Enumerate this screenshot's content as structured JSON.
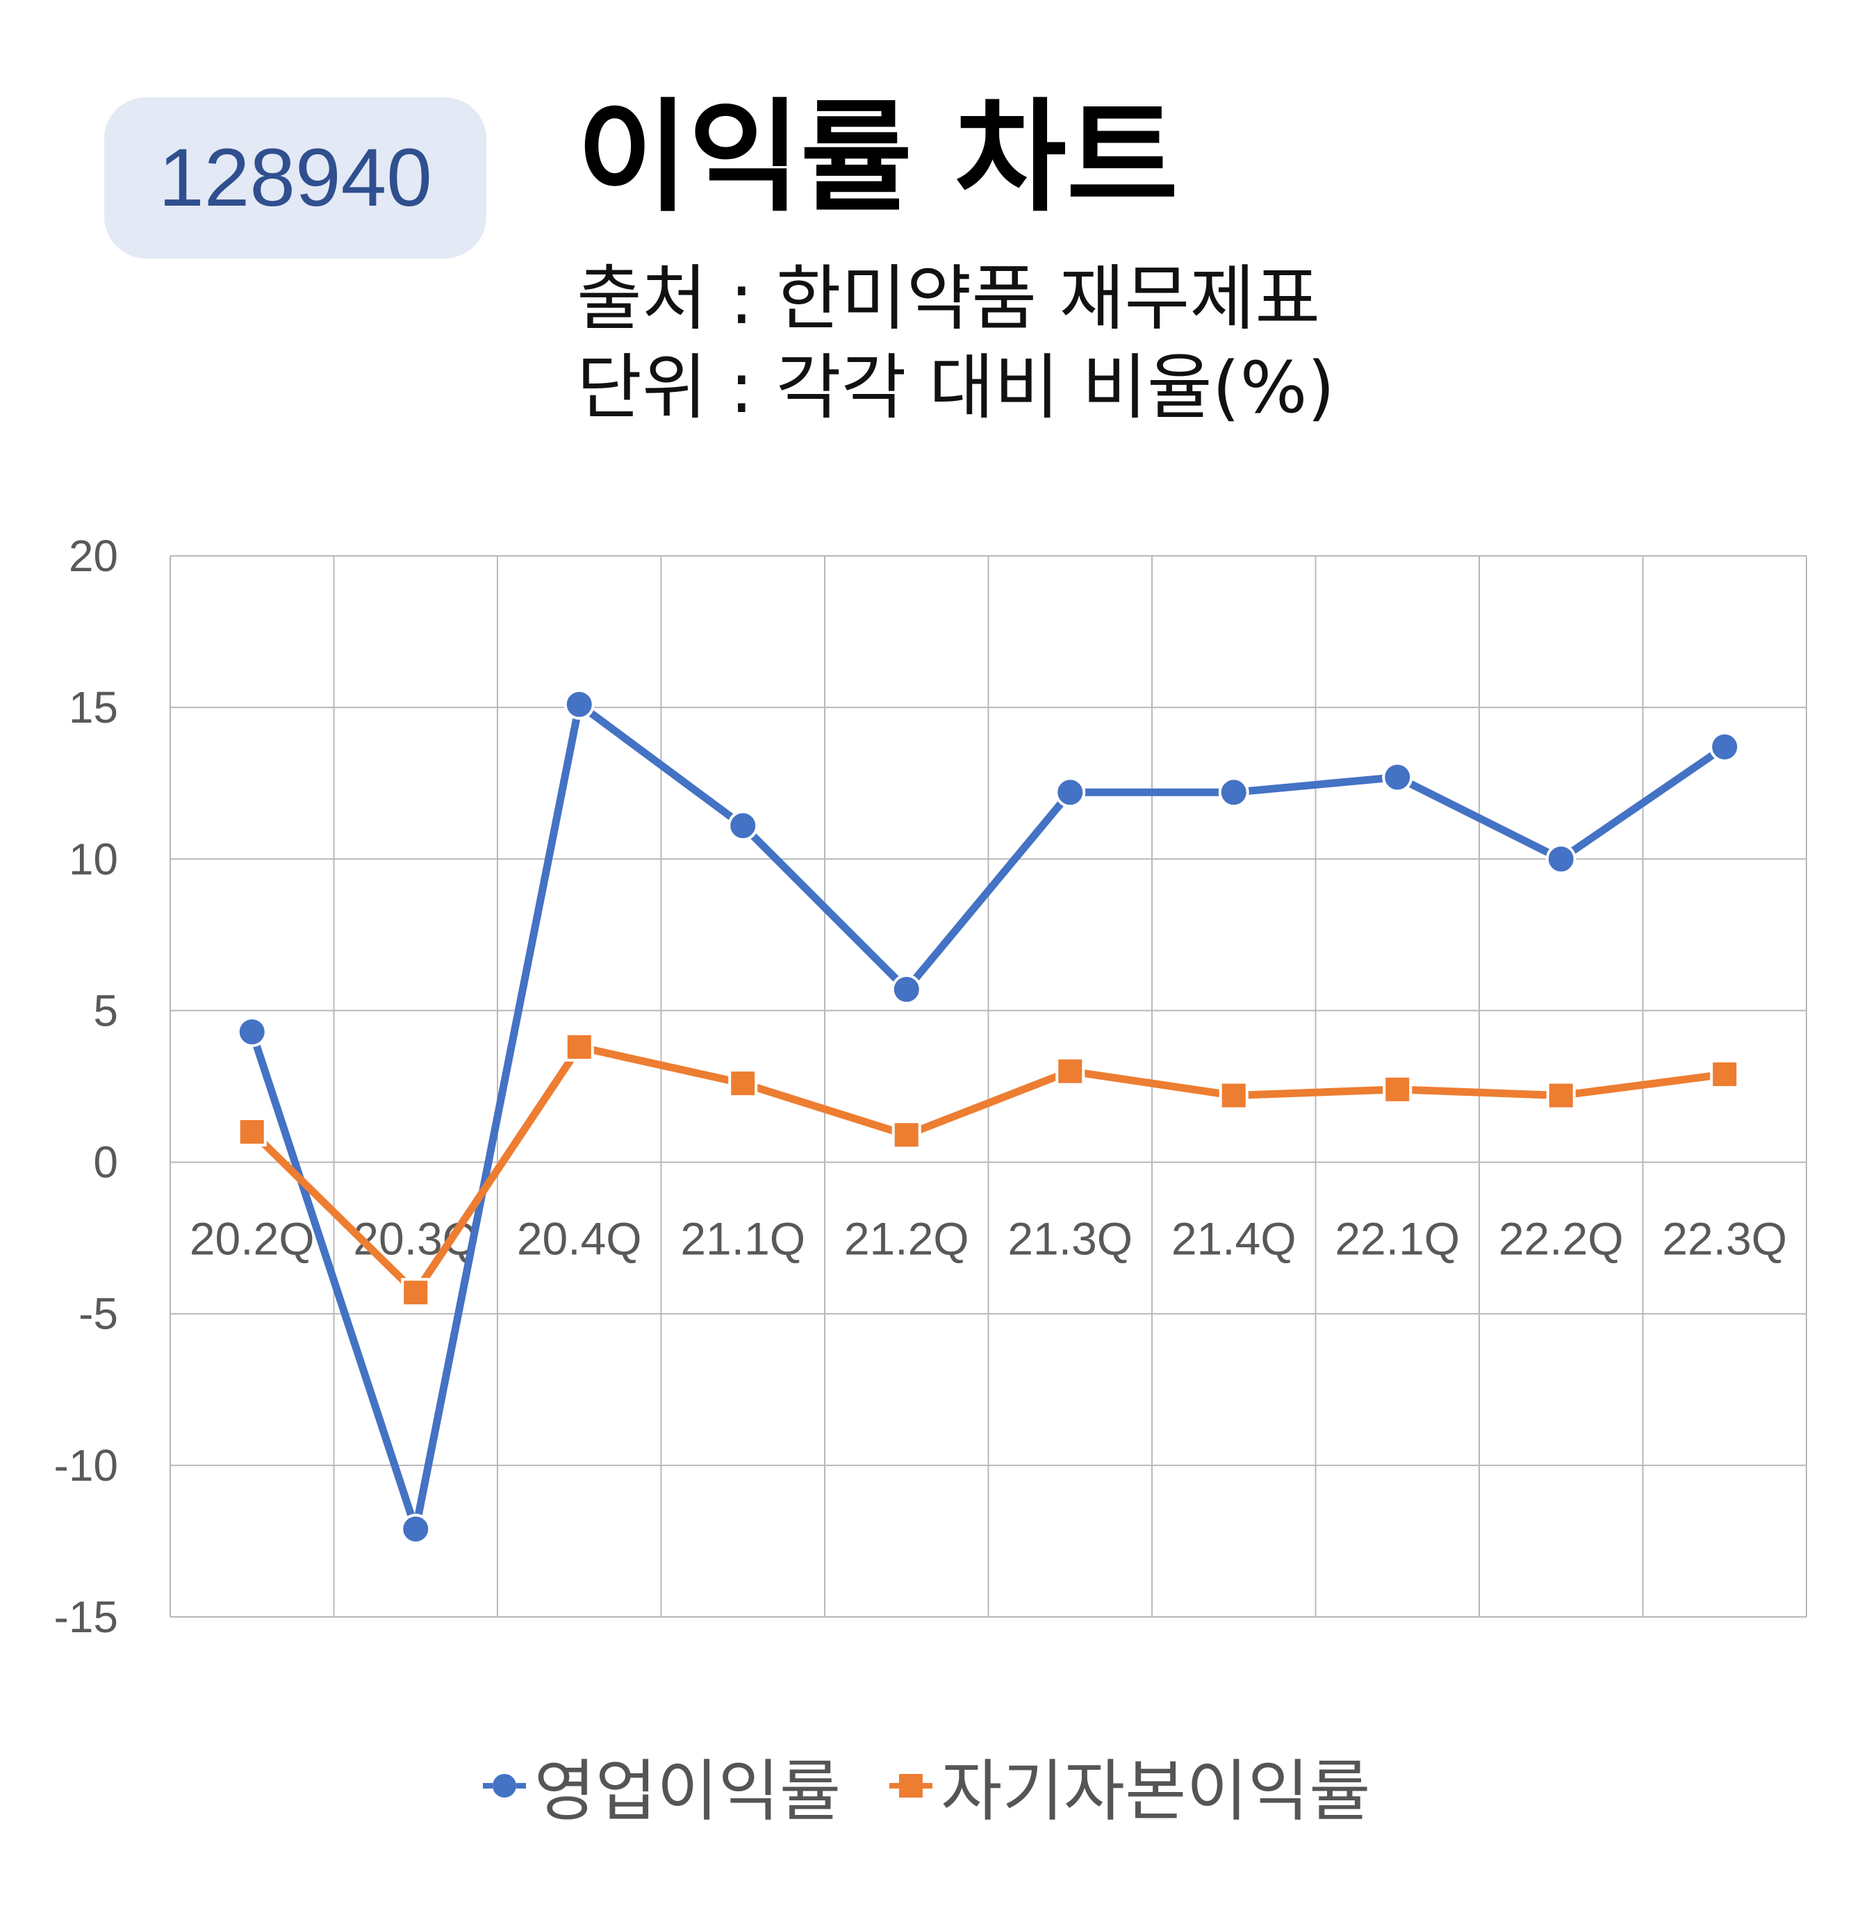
{
  "header": {
    "badge": "128940",
    "title": "이익률 차트",
    "source_line": "출처 : 한미약품 재무제표",
    "unit_line": "단위 : 각각 대비 비율(%)"
  },
  "colors": {
    "series1": "#4472c4",
    "series2": "#ed7d31",
    "grid": "#b8b8b8",
    "badge_bg": "#e3e9f5",
    "badge_text": "#2f4f8f",
    "tick_text": "#595959"
  },
  "chart_data": {
    "type": "line",
    "categories": [
      "20.2Q",
      "20.3Q",
      "20.4Q",
      "21.1Q",
      "21.2Q",
      "21.3Q",
      "21.4Q",
      "22.1Q",
      "22.2Q",
      "22.3Q"
    ],
    "series": [
      {
        "name": "영업이익률",
        "marker": "circle",
        "values": [
          4.3,
          -12.1,
          15.1,
          11.1,
          5.7,
          12.2,
          12.2,
          12.7,
          10.0,
          13.7
        ]
      },
      {
        "name": "자기자본이익률",
        "marker": "square",
        "values": [
          1.0,
          -4.3,
          3.8,
          2.6,
          0.9,
          3.0,
          2.2,
          2.4,
          2.2,
          2.9
        ]
      }
    ],
    "ylim": [
      -15,
      20
    ],
    "yticks": [
      "20",
      "15",
      "10",
      "5",
      "0",
      "-5",
      "-10",
      "-15"
    ],
    "xlabel": "",
    "ylabel": "",
    "grid": true,
    "legend_position": "bottom"
  }
}
